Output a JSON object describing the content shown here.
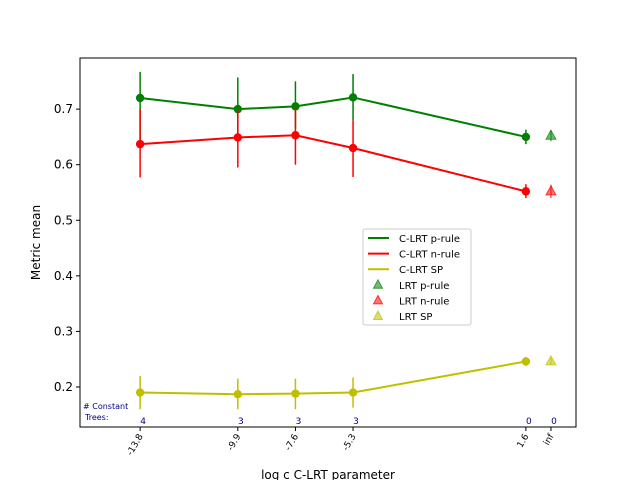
{
  "chart_data": {
    "type": "line",
    "title": "",
    "xlabel": "log c C-LRT parameter",
    "ylabel": "Metric mean",
    "ylim": [
      0.128,
      0.792
    ],
    "yticks": [
      0.2,
      0.3,
      0.4,
      0.5,
      0.6,
      0.7
    ],
    "yticklabels": [
      "0.2",
      "0.3",
      "0.4",
      "0.5",
      "0.6",
      "0.7"
    ],
    "categories": [
      "-13.8",
      "-9.9",
      "-7.6",
      "-5.3",
      "1.6",
      "inf"
    ],
    "category_positions": [
      -13.8,
      -9.9,
      -7.6,
      -5.3,
      1.6,
      2.6
    ],
    "xlim": [
      -16.2,
      3.6
    ],
    "grid": false,
    "legend_position": "center-right",
    "colors": {
      "green": "#008000",
      "red": "#ff0000",
      "yellow": "#bfbf00",
      "annotation": "#00008b",
      "axis": "#000000"
    },
    "series": [
      {
        "name": "C-LRT p-rule",
        "kind": "line",
        "color": "#008000",
        "x": [
          -13.8,
          -9.9,
          -7.6,
          -5.3,
          1.6
        ],
        "values": [
          0.72,
          0.7,
          0.705,
          0.721,
          0.65
        ],
        "err_low": [
          0.64,
          0.64,
          0.665,
          0.68,
          0.637
        ],
        "err_high": [
          0.767,
          0.757,
          0.75,
          0.763,
          0.663
        ]
      },
      {
        "name": "C-LRT n-rule",
        "kind": "line",
        "color": "#ff0000",
        "x": [
          -13.8,
          -9.9,
          -7.6,
          -5.3,
          1.6
        ],
        "values": [
          0.637,
          0.649,
          0.653,
          0.63,
          0.552
        ],
        "err_low": [
          0.577,
          0.595,
          0.6,
          0.578,
          0.54
        ],
        "err_high": [
          0.7,
          0.7,
          0.703,
          0.68,
          0.565
        ]
      },
      {
        "name": "C-LRT SP",
        "kind": "line",
        "color": "#bfbf00",
        "x": [
          -13.8,
          -9.9,
          -7.6,
          -5.3,
          1.6
        ],
        "values": [
          0.19,
          0.187,
          0.188,
          0.19,
          0.246
        ],
        "err_low": [
          0.16,
          0.16,
          0.16,
          0.163,
          0.238
        ],
        "err_high": [
          0.22,
          0.215,
          0.215,
          0.217,
          0.254
        ]
      },
      {
        "name": "LRT p-rule",
        "kind": "triangle",
        "color": "#008000",
        "x": [
          2.6
        ],
        "values": [
          0.652
        ],
        "err_low": [
          0.642
        ],
        "err_high": [
          0.662
        ]
      },
      {
        "name": "LRT n-rule",
        "kind": "triangle",
        "color": "#ff0000",
        "x": [
          2.6
        ],
        "values": [
          0.552
        ],
        "err_low": [
          0.54
        ],
        "err_high": [
          0.564
        ]
      },
      {
        "name": "LRT SP",
        "kind": "triangle",
        "color": "#bfbf00",
        "x": [
          2.6
        ],
        "values": [
          0.246
        ],
        "err_low": [
          0.24
        ],
        "err_high": [
          0.252
        ]
      }
    ],
    "annotation_title": "# Constant\nTrees:",
    "annotations": [
      {
        "x": -13.8,
        "text": "4"
      },
      {
        "x": -9.9,
        "text": "3"
      },
      {
        "x": -7.6,
        "text": "3"
      },
      {
        "x": -5.3,
        "text": "3"
      },
      {
        "x": 1.6,
        "text": "0"
      },
      {
        "x": 2.6,
        "text": "0"
      }
    ]
  }
}
